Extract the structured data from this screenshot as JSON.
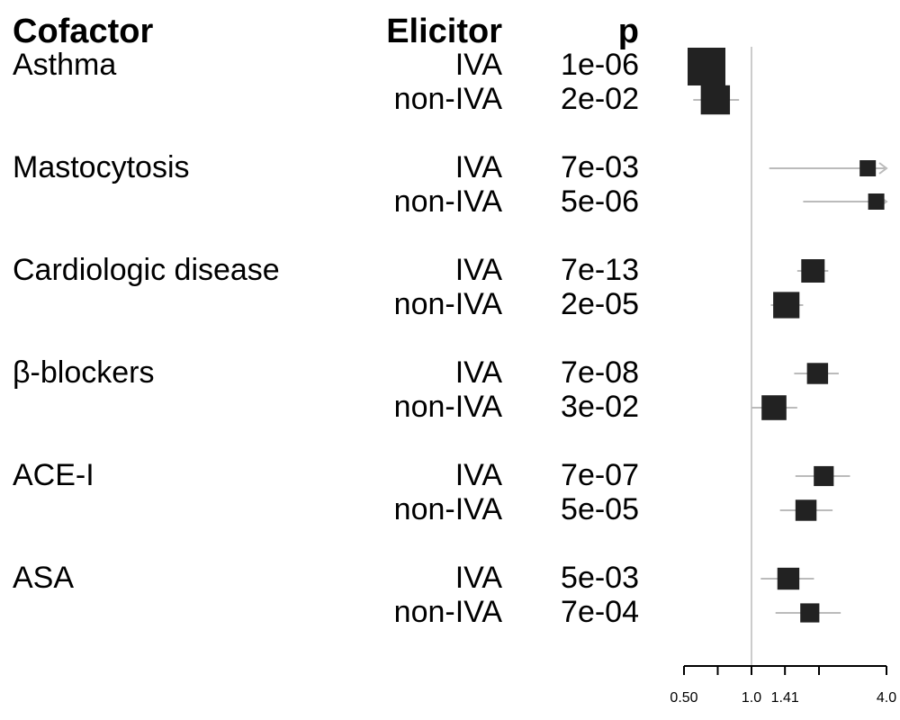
{
  "table": {
    "headers": {
      "cofactor": "Cofactor",
      "elicitor": "Elicitor",
      "p": "p"
    },
    "groups": [
      {
        "cofactor": "Asthma",
        "rows": [
          {
            "elicitor": "IVA",
            "p": "1e-06"
          },
          {
            "elicitor": "non-IVA",
            "p": "2e-02"
          }
        ]
      },
      {
        "cofactor": "Mastocytosis",
        "rows": [
          {
            "elicitor": "IVA",
            "p": "7e-03"
          },
          {
            "elicitor": "non-IVA",
            "p": "5e-06"
          }
        ]
      },
      {
        "cofactor": "Cardiologic disease",
        "rows": [
          {
            "elicitor": "IVA",
            "p": "7e-13"
          },
          {
            "elicitor": "non-IVA",
            "p": "2e-05"
          }
        ]
      },
      {
        "cofactor": "β-blockers",
        "rows": [
          {
            "elicitor": "IVA",
            "p": "7e-08"
          },
          {
            "elicitor": "non-IVA",
            "p": "3e-02"
          }
        ]
      },
      {
        "cofactor": "ACE-I",
        "rows": [
          {
            "elicitor": "IVA",
            "p": "7e-07"
          },
          {
            "elicitor": "non-IVA",
            "p": "5e-05"
          }
        ]
      },
      {
        "cofactor": "ASA",
        "rows": [
          {
            "elicitor": "IVA",
            "p": "5e-03"
          },
          {
            "elicitor": "non-IVA",
            "p": "7e-04"
          }
        ]
      }
    ]
  },
  "chart_data": {
    "type": "forest",
    "x_scale": "log2",
    "xlim": [
      0.5,
      4.0
    ],
    "reference_line": 1.0,
    "x_ticks": [
      0.5,
      0.707,
      1.0,
      1.41,
      2.0,
      4.0
    ],
    "x_tick_labels": [
      "0.50",
      "",
      "1.0",
      "1.41",
      "",
      "4.0"
    ],
    "marker_color": "#222222",
    "ci_color": "#bbbbbb",
    "ref_line_color": "#cccccc",
    "rows": [
      {
        "cofactor": "Asthma",
        "elicitor": "IVA",
        "estimate": 0.63,
        "ci_low": null,
        "ci_high": null,
        "weight": 1.0,
        "arrow_high": false
      },
      {
        "cofactor": "Asthma",
        "elicitor": "non-IVA",
        "estimate": 0.69,
        "ci_low": 0.55,
        "ci_high": 0.88,
        "weight": 0.7,
        "arrow_high": false
      },
      {
        "cofactor": "Mastocytosis",
        "elicitor": "IVA",
        "estimate": 3.3,
        "ci_low": 1.2,
        "ci_high": 4.0,
        "weight": 0.25,
        "arrow_high": true
      },
      {
        "cofactor": "Mastocytosis",
        "elicitor": "non-IVA",
        "estimate": 3.6,
        "ci_low": 1.7,
        "ci_high": 4.0,
        "weight": 0.25,
        "arrow_high": true
      },
      {
        "cofactor": "Cardiologic disease",
        "elicitor": "IVA",
        "estimate": 1.88,
        "ci_low": 1.6,
        "ci_high": 2.2,
        "weight": 0.5,
        "arrow_high": false
      },
      {
        "cofactor": "Cardiologic disease",
        "elicitor": "non-IVA",
        "estimate": 1.43,
        "ci_low": 1.22,
        "ci_high": 1.7,
        "weight": 0.6,
        "arrow_high": false
      },
      {
        "cofactor": "β-blockers",
        "elicitor": "IVA",
        "estimate": 1.97,
        "ci_low": 1.55,
        "ci_high": 2.45,
        "weight": 0.42,
        "arrow_high": false
      },
      {
        "cofactor": "β-blockers",
        "elicitor": "non-IVA",
        "estimate": 1.26,
        "ci_low": 1.0,
        "ci_high": 1.6,
        "weight": 0.55,
        "arrow_high": false
      },
      {
        "cofactor": "ACE-I",
        "elicitor": "IVA",
        "estimate": 2.1,
        "ci_low": 1.57,
        "ci_high": 2.75,
        "weight": 0.38,
        "arrow_high": false
      },
      {
        "cofactor": "ACE-I",
        "elicitor": "non-IVA",
        "estimate": 1.75,
        "ci_low": 1.34,
        "ci_high": 2.3,
        "weight": 0.42,
        "arrow_high": false
      },
      {
        "cofactor": "ASA",
        "elicitor": "IVA",
        "estimate": 1.46,
        "ci_low": 1.1,
        "ci_high": 1.9,
        "weight": 0.45,
        "arrow_high": false
      },
      {
        "cofactor": "ASA",
        "elicitor": "non-IVA",
        "estimate": 1.82,
        "ci_low": 1.28,
        "ci_high": 2.5,
        "weight": 0.35,
        "arrow_high": false
      }
    ]
  }
}
